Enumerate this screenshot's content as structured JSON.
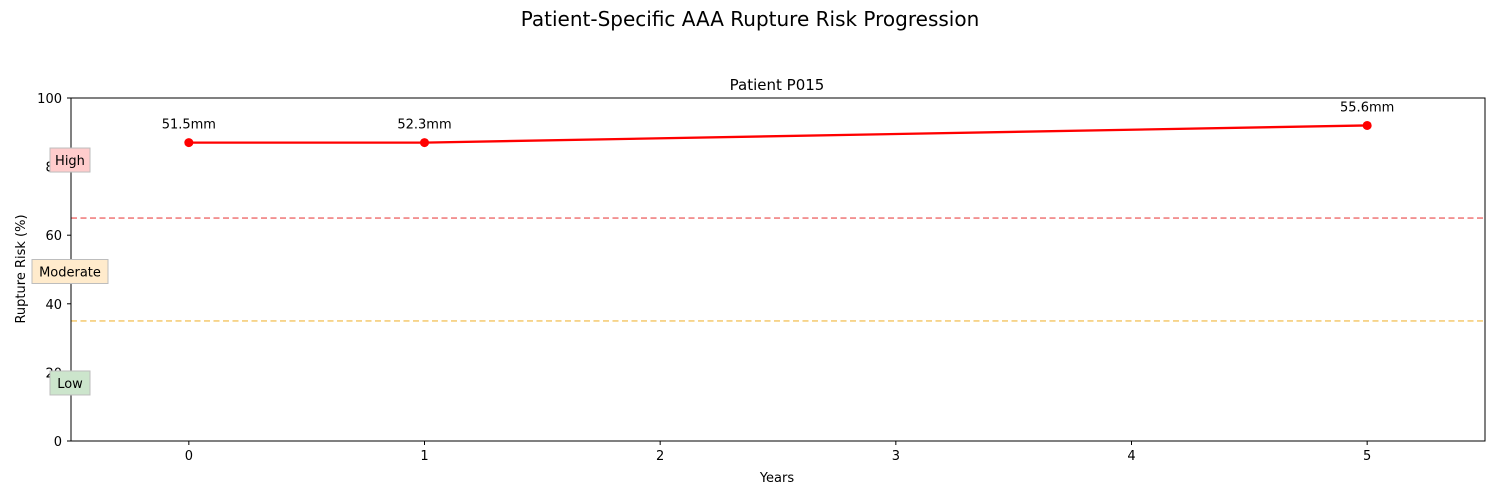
{
  "figure": {
    "suptitle": "Patient-Specific AAA Rupture Risk Progression"
  },
  "chart_data": {
    "type": "line",
    "title": "Patient P015",
    "xlabel": "Years",
    "ylabel": "Rupture Risk (%)",
    "xlim": [
      -0.5,
      5.5
    ],
    "ylim": [
      0,
      100
    ],
    "xticks": [
      0,
      1,
      2,
      3,
      4,
      5
    ],
    "yticks": [
      0,
      20,
      40,
      60,
      80,
      100
    ],
    "grid": false,
    "series": [
      {
        "x": [
          0,
          1,
          5
        ],
        "y": [
          87,
          87,
          92
        ],
        "labels": [
          "51.5mm",
          "52.3mm",
          "55.6mm"
        ],
        "color": "#ff0000"
      }
    ],
    "thresholds": [
      {
        "y": 65,
        "color": "#f08080",
        "style": "dashed"
      },
      {
        "y": 35,
        "color": "#f5cd79",
        "style": "dashed"
      }
    ],
    "risk_zones": [
      {
        "label": "High",
        "y": 82.5,
        "bg": "#ffcccc"
      },
      {
        "label": "Moderate",
        "y": 50,
        "bg": "#ffebcc"
      },
      {
        "label": "Low",
        "y": 17.5,
        "bg": "#cce5cc"
      }
    ]
  }
}
